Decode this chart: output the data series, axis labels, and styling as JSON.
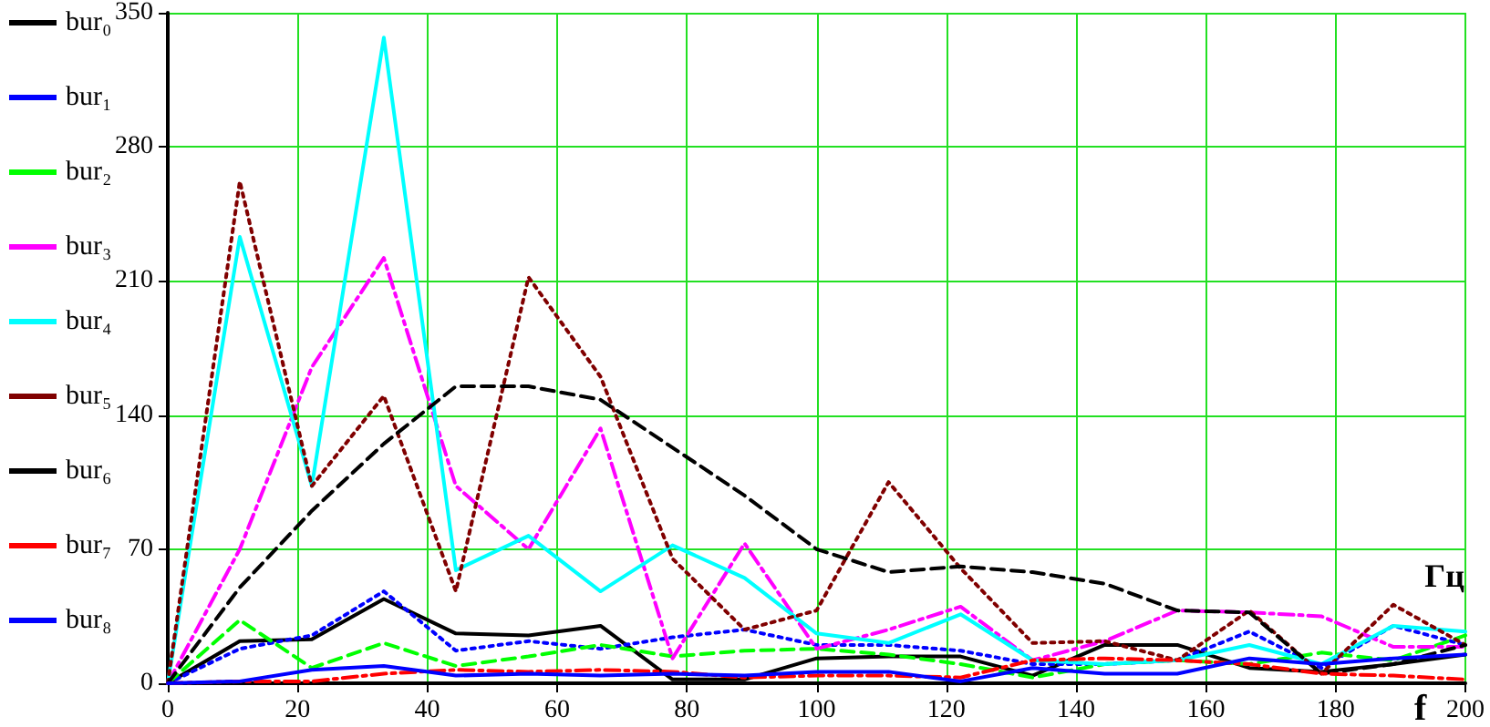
{
  "chart_data": {
    "type": "line",
    "xlabel": "f",
    "annotations": [
      "Гц"
    ],
    "x": [
      0,
      11.1,
      22.2,
      33.3,
      44.4,
      55.6,
      66.7,
      77.8,
      88.9,
      100,
      111.1,
      122.2,
      133.3,
      144.4,
      155.6,
      166.7,
      177.8,
      188.9,
      200
    ],
    "series": [
      {
        "name": "bur₀",
        "color": "#000000",
        "line_style": "solid",
        "values": [
          0,
          22,
          23,
          44,
          26,
          25,
          30,
          2,
          2,
          13,
          14,
          14,
          4,
          20,
          20,
          8,
          6,
          10,
          15
        ]
      },
      {
        "name": "bur₁",
        "color": "#0000ff",
        "line_style": "dotted",
        "values": [
          0,
          18,
          25,
          48,
          17,
          22,
          18,
          24,
          28,
          20,
          20,
          17,
          10,
          10,
          12,
          27,
          8,
          30,
          20
        ]
      },
      {
        "name": "bur₂",
        "color": "#00ff00",
        "line_style": "dashed",
        "values": [
          0,
          33,
          8,
          21,
          9,
          14,
          20,
          14,
          17,
          18,
          15,
          10,
          3,
          10,
          12,
          10,
          16,
          12,
          25
        ]
      },
      {
        "name": "bur₃",
        "color": "#ff00ff",
        "line_style": "dashdot",
        "values": [
          0,
          70,
          165,
          222,
          103,
          70,
          133,
          13,
          73,
          18,
          28,
          40,
          12,
          22,
          38,
          37,
          35,
          19,
          19
        ]
      },
      {
        "name": "bur₄",
        "color": "#00ffff",
        "line_style": "solid",
        "values": [
          0,
          233,
          103,
          337,
          59,
          77,
          48,
          72,
          55,
          26,
          21,
          36,
          12,
          10,
          12,
          20,
          10,
          30,
          27
        ]
      },
      {
        "name": "bur₅",
        "color": "#800000",
        "line_style": "dotted",
        "values": [
          0,
          262,
          103,
          150,
          48,
          212,
          160,
          65,
          28,
          38,
          105,
          60,
          21,
          22,
          12,
          38,
          5,
          41,
          20
        ]
      },
      {
        "name": "bur₆",
        "color": "#000000",
        "line_style": "dashed",
        "values": [
          0,
          50,
          90,
          125,
          155,
          155,
          148,
          123,
          98,
          70,
          58,
          61,
          58,
          52,
          38,
          37,
          5,
          10,
          20
        ]
      },
      {
        "name": "bur₇",
        "color": "#ff0000",
        "line_style": "dashdot",
        "values": [
          0,
          1,
          1,
          5,
          7,
          6,
          7,
          6,
          3,
          4,
          4,
          3,
          12,
          13,
          12,
          10,
          5,
          4,
          2
        ]
      },
      {
        "name": "bur₈",
        "color": "#0000ff",
        "line_style": "solid",
        "values": [
          0,
          1,
          7,
          9,
          4,
          5,
          4,
          5,
          4,
          6,
          6,
          1,
          8,
          5,
          5,
          13,
          10,
          13,
          15
        ]
      }
    ],
    "xlim": [
      0,
      200
    ],
    "xticks": [
      0,
      20,
      40,
      60,
      80,
      100,
      120,
      140,
      160,
      180,
      200
    ],
    "ylim": [
      0,
      350
    ],
    "yticks": [
      0,
      70,
      140,
      210,
      280,
      350
    ],
    "grid": true,
    "legend": "left",
    "marker": "none"
  }
}
